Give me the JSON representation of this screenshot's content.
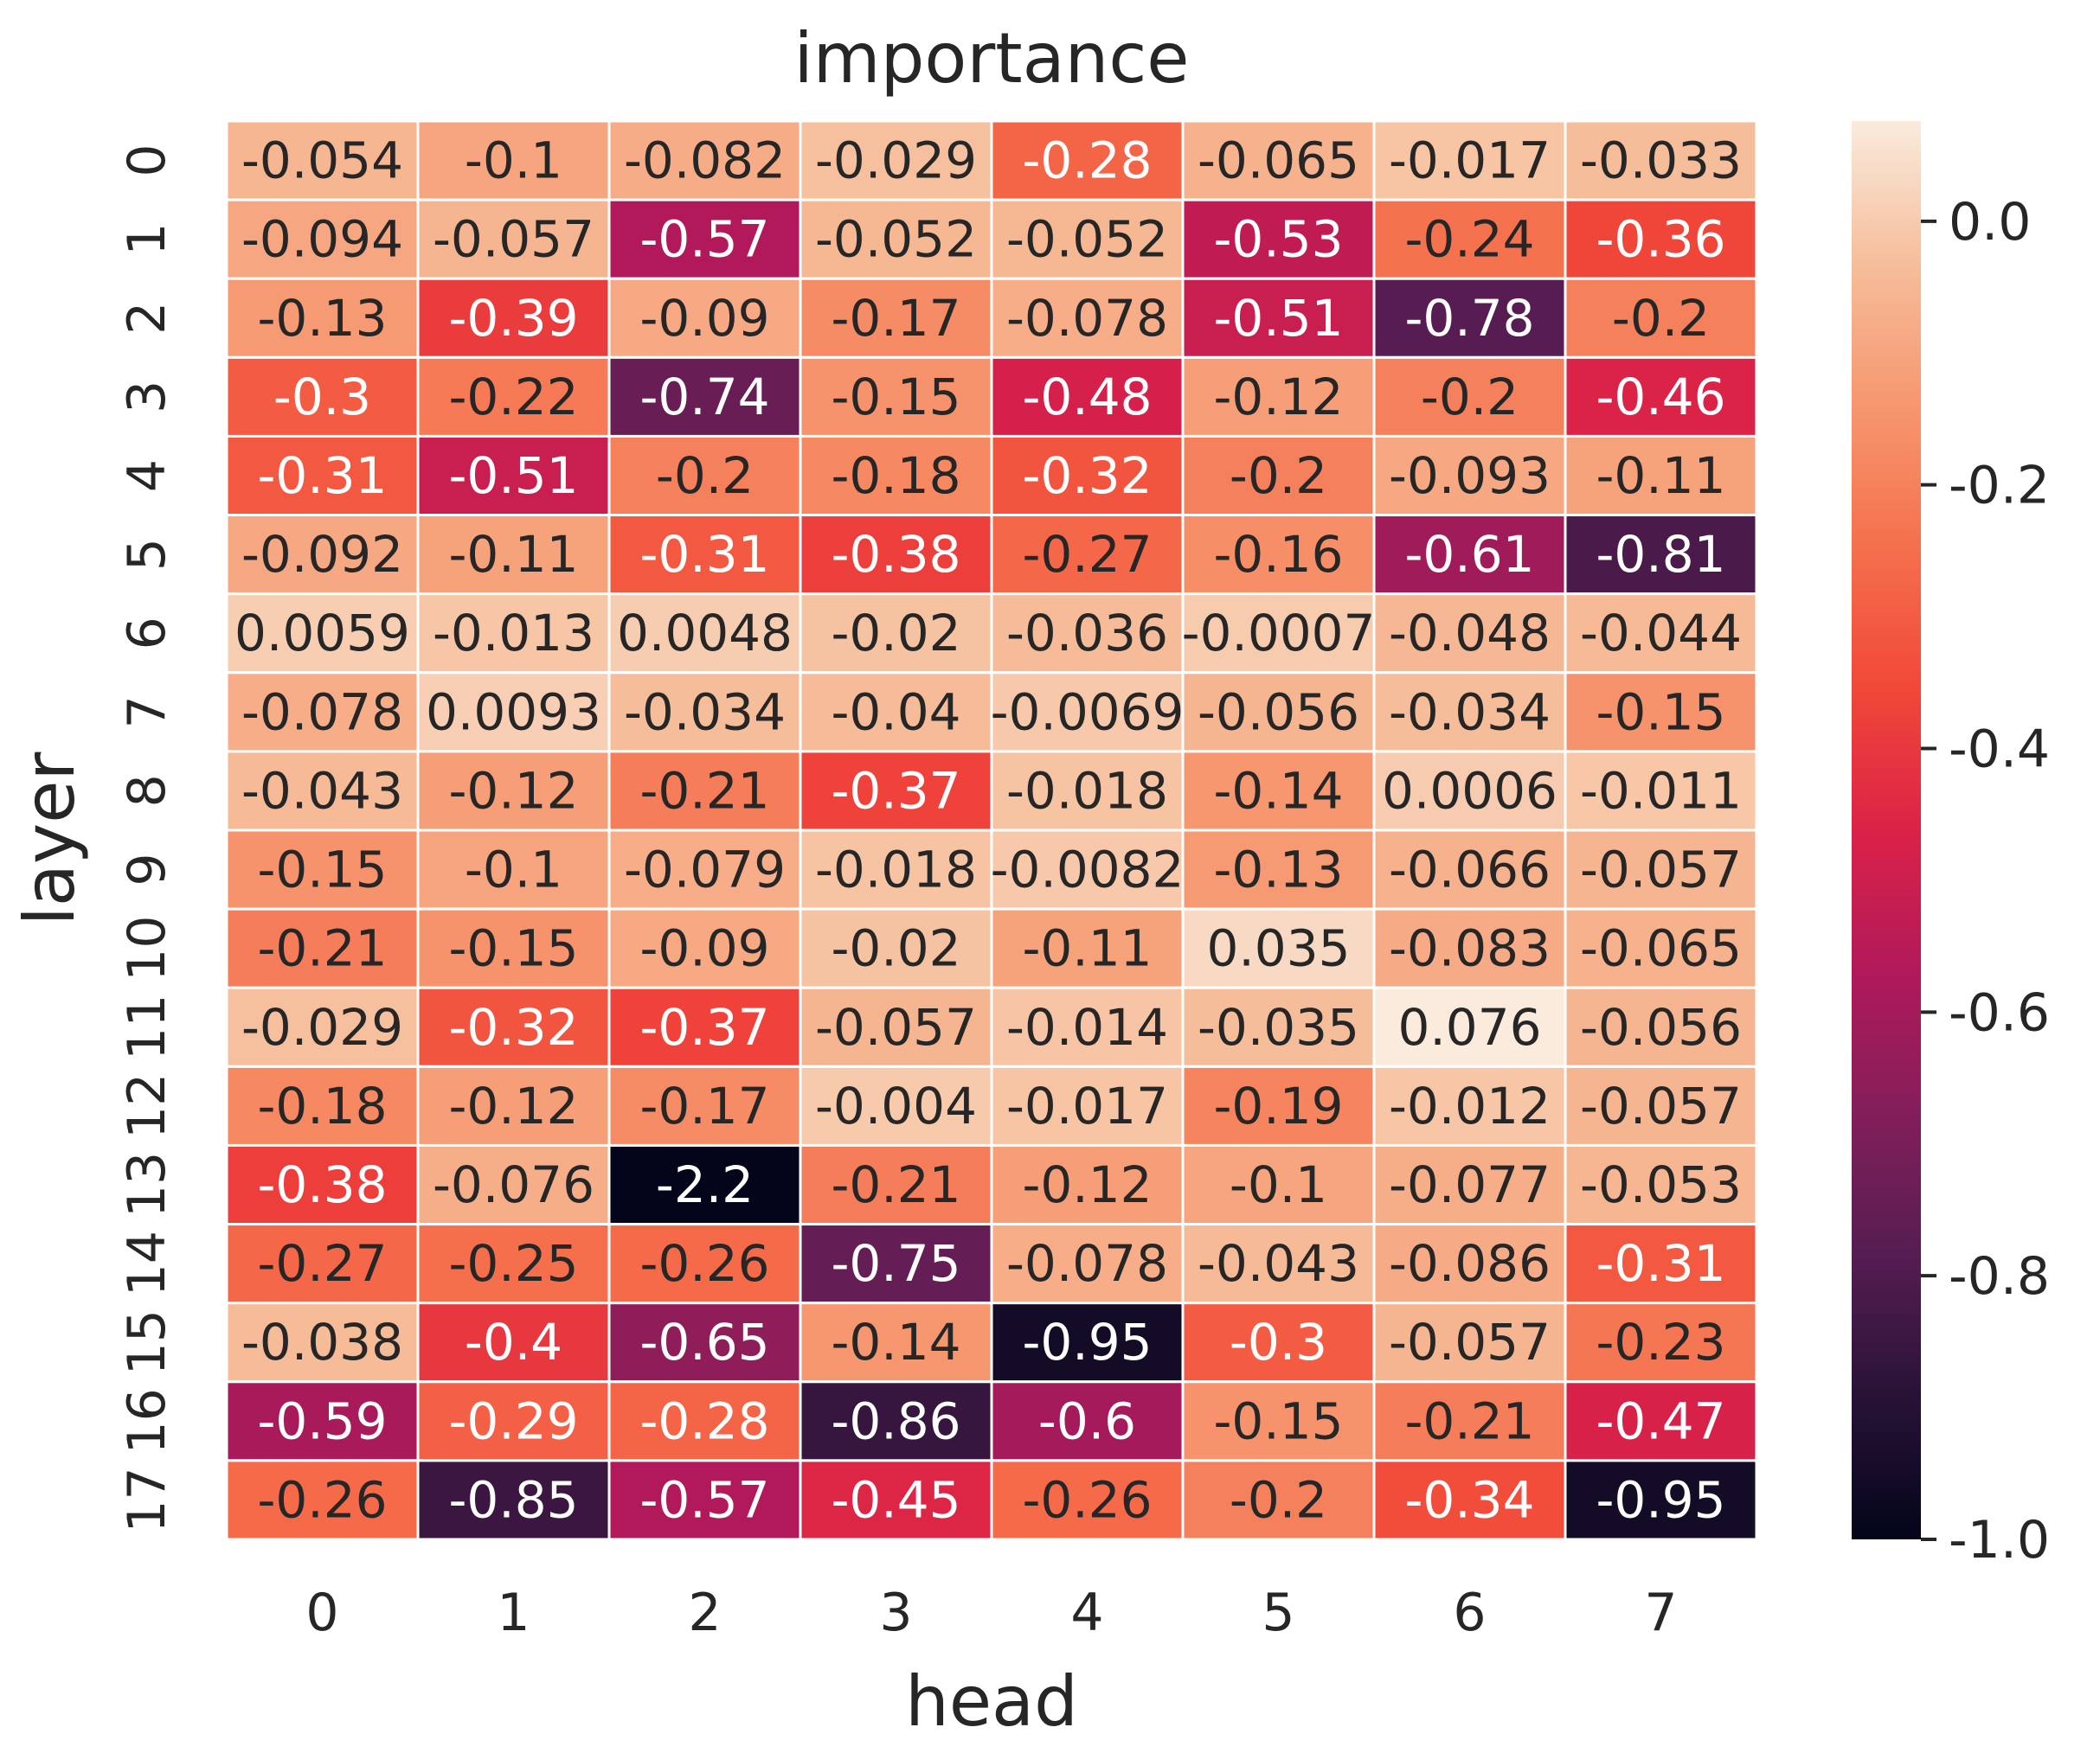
{
  "chart_data": {
    "type": "heatmap",
    "title": "importance",
    "xlabel": "head",
    "ylabel": "layer",
    "x_categories": [
      "0",
      "1",
      "2",
      "3",
      "4",
      "5",
      "6",
      "7"
    ],
    "y_categories": [
      "0",
      "1",
      "2",
      "3",
      "4",
      "5",
      "6",
      "7",
      "8",
      "9",
      "10",
      "11",
      "12",
      "13",
      "14",
      "15",
      "16",
      "17"
    ],
    "values": [
      [
        -0.054,
        -0.1,
        -0.082,
        -0.029,
        -0.28,
        -0.065,
        -0.017,
        -0.033
      ],
      [
        -0.094,
        -0.057,
        -0.57,
        -0.052,
        -0.052,
        -0.53,
        -0.24,
        -0.36
      ],
      [
        -0.13,
        -0.39,
        -0.09,
        -0.17,
        -0.078,
        -0.51,
        -0.78,
        -0.2
      ],
      [
        -0.3,
        -0.22,
        -0.74,
        -0.15,
        -0.48,
        -0.12,
        -0.2,
        -0.46
      ],
      [
        -0.31,
        -0.51,
        -0.2,
        -0.18,
        -0.32,
        -0.2,
        -0.093,
        -0.11
      ],
      [
        -0.092,
        -0.11,
        -0.31,
        -0.38,
        -0.27,
        -0.16,
        -0.61,
        -0.81
      ],
      [
        0.0059,
        -0.013,
        0.0048,
        -0.02,
        -0.036,
        -0.0007,
        -0.048,
        -0.044
      ],
      [
        -0.078,
        0.0093,
        -0.034,
        -0.04,
        -0.0069,
        -0.056,
        -0.034,
        -0.15
      ],
      [
        -0.043,
        -0.12,
        -0.21,
        -0.37,
        -0.018,
        -0.14,
        0.0006,
        -0.011
      ],
      [
        -0.15,
        -0.1,
        -0.079,
        -0.018,
        -0.0082,
        -0.13,
        -0.066,
        -0.057
      ],
      [
        -0.21,
        -0.15,
        -0.09,
        -0.02,
        -0.11,
        0.035,
        -0.083,
        -0.065
      ],
      [
        -0.029,
        -0.32,
        -0.37,
        -0.057,
        -0.014,
        -0.035,
        0.076,
        -0.056
      ],
      [
        -0.18,
        -0.12,
        -0.17,
        -0.004,
        -0.017,
        -0.19,
        -0.012,
        -0.057
      ],
      [
        -0.38,
        -0.076,
        -2.2,
        -0.21,
        -0.12,
        -0.1,
        -0.077,
        -0.053
      ],
      [
        -0.27,
        -0.25,
        -0.26,
        -0.75,
        -0.078,
        -0.043,
        -0.086,
        -0.31
      ],
      [
        -0.038,
        -0.4,
        -0.65,
        -0.14,
        -0.95,
        -0.3,
        -0.057,
        -0.23
      ],
      [
        -0.59,
        -0.29,
        -0.28,
        -0.86,
        -0.6,
        -0.15,
        -0.21,
        -0.47
      ],
      [
        -0.26,
        -0.85,
        -0.57,
        -0.45,
        -0.26,
        -0.2,
        -0.34,
        -0.95
      ]
    ],
    "labels": [
      [
        "-0.054",
        "-0.1",
        "-0.082",
        "-0.029",
        "-0.28",
        "-0.065",
        "-0.017",
        "-0.033"
      ],
      [
        "-0.094",
        "-0.057",
        "-0.57",
        "-0.052",
        "-0.052",
        "-0.53",
        "-0.24",
        "-0.36"
      ],
      [
        "-0.13",
        "-0.39",
        "-0.09",
        "-0.17",
        "-0.078",
        "-0.51",
        "-0.78",
        "-0.2"
      ],
      [
        "-0.3",
        "-0.22",
        "-0.74",
        "-0.15",
        "-0.48",
        "-0.12",
        "-0.2",
        "-0.46"
      ],
      [
        "-0.31",
        "-0.51",
        "-0.2",
        "-0.18",
        "-0.32",
        "-0.2",
        "-0.093",
        "-0.11"
      ],
      [
        "-0.092",
        "-0.11",
        "-0.31",
        "-0.38",
        "-0.27",
        "-0.16",
        "-0.61",
        "-0.81"
      ],
      [
        "0.0059",
        "-0.013",
        "0.0048",
        "-0.02",
        "-0.036",
        "-0.0007",
        "-0.048",
        "-0.044"
      ],
      [
        "-0.078",
        "0.0093",
        "-0.034",
        "-0.04",
        "-0.0069",
        "-0.056",
        "-0.034",
        "-0.15"
      ],
      [
        "-0.043",
        "-0.12",
        "-0.21",
        "-0.37",
        "-0.018",
        "-0.14",
        "0.0006",
        "-0.011"
      ],
      [
        "-0.15",
        "-0.1",
        "-0.079",
        "-0.018",
        "-0.0082",
        "-0.13",
        "-0.066",
        "-0.057"
      ],
      [
        "-0.21",
        "-0.15",
        "-0.09",
        "-0.02",
        "-0.11",
        "0.035",
        "-0.083",
        "-0.065"
      ],
      [
        "-0.029",
        "-0.32",
        "-0.37",
        "-0.057",
        "-0.014",
        "-0.035",
        "0.076",
        "-0.056"
      ],
      [
        "-0.18",
        "-0.12",
        "-0.17",
        "-0.004",
        "-0.017",
        "-0.19",
        "-0.012",
        "-0.057"
      ],
      [
        "-0.38",
        "-0.076",
        "-2.2",
        "-0.21",
        "-0.12",
        "-0.1",
        "-0.077",
        "-0.053"
      ],
      [
        "-0.27",
        "-0.25",
        "-0.26",
        "-0.75",
        "-0.078",
        "-0.043",
        "-0.086",
        "-0.31"
      ],
      [
        "-0.038",
        "-0.4",
        "-0.65",
        "-0.14",
        "-0.95",
        "-0.3",
        "-0.057",
        "-0.23"
      ],
      [
        "-0.59",
        "-0.29",
        "-0.28",
        "-0.86",
        "-0.6",
        "-0.15",
        "-0.21",
        "-0.47"
      ],
      [
        "-0.26",
        "-0.85",
        "-0.57",
        "-0.45",
        "-0.26",
        "-0.2",
        "-0.34",
        "-0.95"
      ]
    ],
    "colorbar": {
      "vmin": -1.0,
      "vmax": 0.076,
      "ticks": [
        0.0,
        -0.2,
        -0.4,
        -0.6,
        -0.8,
        -1.0
      ],
      "tick_labels": [
        "0.0",
        "-0.2",
        "-0.4",
        "-0.6",
        "-0.8",
        "-1.0"
      ],
      "colormap": "rocket"
    },
    "grid": true
  }
}
